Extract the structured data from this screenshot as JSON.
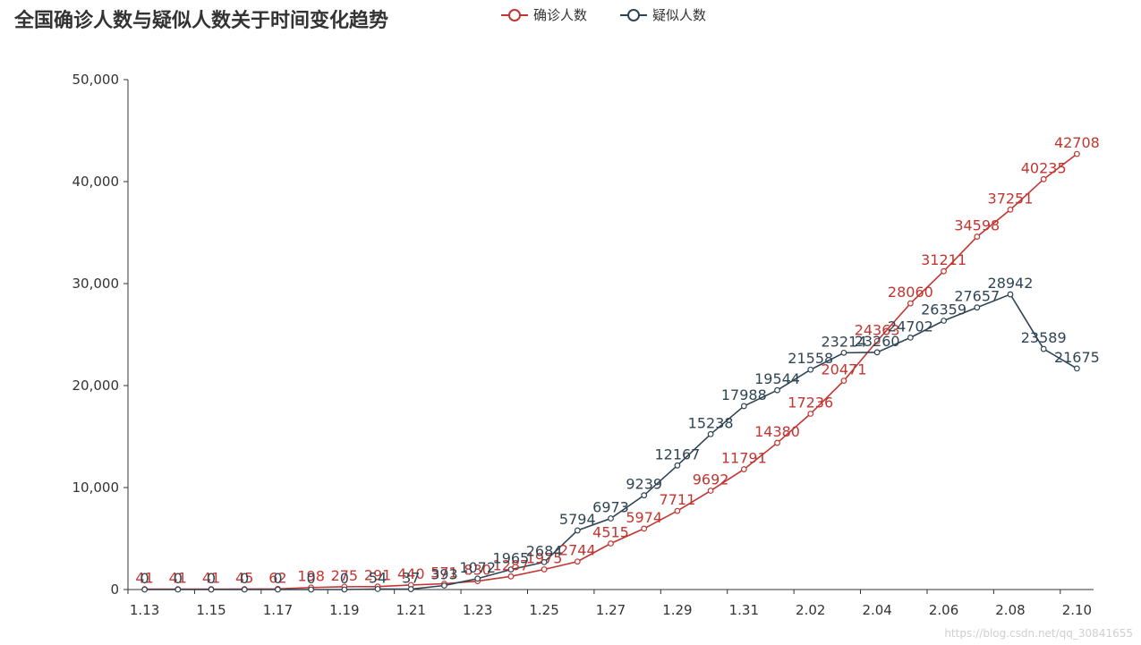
{
  "chart_data": {
    "type": "line",
    "title": "全国确诊人数与疑似人数关于时间变化趋势",
    "categories": [
      "1.13",
      "1.14",
      "1.15",
      "1.16",
      "1.17",
      "1.18",
      "1.19",
      "1.20",
      "1.21",
      "1.22",
      "1.23",
      "1.24",
      "1.25",
      "1.26",
      "1.27",
      "1.28",
      "1.29",
      "1.30",
      "1.31",
      "2.01",
      "2.02",
      "2.03",
      "2.04",
      "2.05",
      "2.06",
      "2.07",
      "2.08",
      "2.09",
      "2.10"
    ],
    "x_tick_labels": [
      "1.13",
      "1.15",
      "1.17",
      "1.19",
      "1.21",
      "1.23",
      "1.25",
      "1.27",
      "1.29",
      "1.31",
      "2.02",
      "2.04",
      "2.06",
      "2.08",
      "2.10"
    ],
    "ylim": [
      0,
      50000
    ],
    "y_ticks": [
      0,
      10000,
      20000,
      30000,
      40000,
      50000
    ],
    "y_tick_labels": [
      "0",
      "10,000",
      "20,000",
      "30,000",
      "40,000",
      "50,000"
    ],
    "legend_position": "top",
    "series": [
      {
        "name": "确诊人数",
        "color": "#c23531",
        "values": [
          41,
          41,
          41,
          45,
          62,
          198,
          275,
          291,
          440,
          571,
          830,
          1287,
          1975,
          2744,
          4515,
          5974,
          7711,
          9692,
          11791,
          14380,
          17236,
          20471,
          24363,
          28060,
          31211,
          34598,
          37251,
          40235,
          42708
        ]
      },
      {
        "name": "疑似人数",
        "color": "#2f4554",
        "values": [
          0,
          0,
          0,
          0,
          0,
          0,
          0,
          54,
          37,
          393,
          1072,
          1965,
          2684,
          5794,
          6973,
          9239,
          12167,
          15238,
          17988,
          19544,
          21558,
          23214,
          23260,
          24702,
          26359,
          27657,
          28942,
          23589,
          21675
        ]
      }
    ]
  },
  "watermark": "https://blog.csdn.net/qq_30841655"
}
